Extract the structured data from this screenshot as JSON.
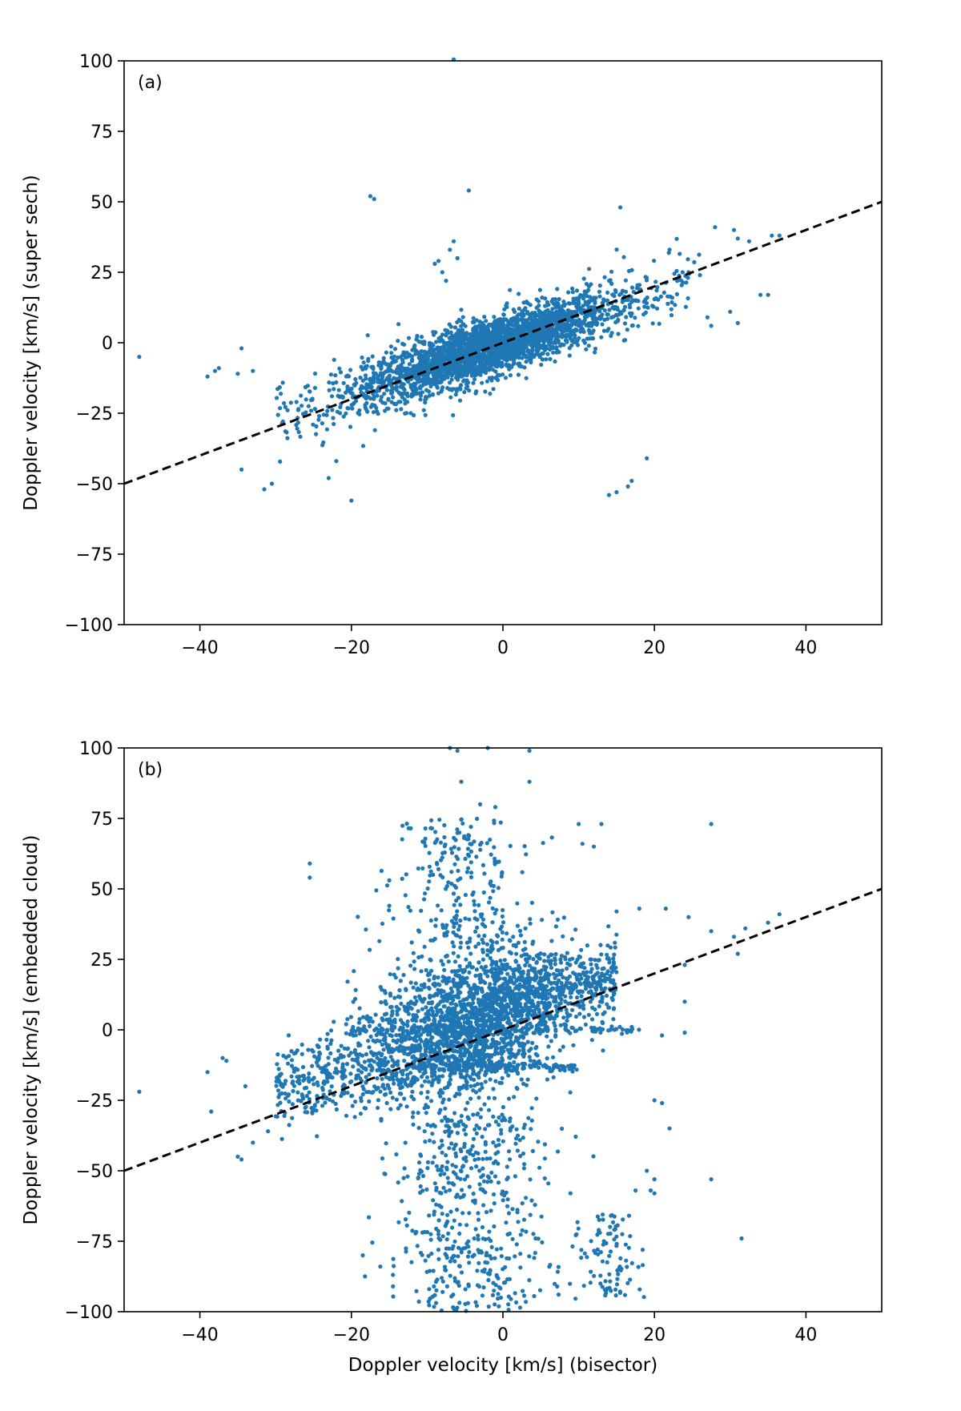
{
  "chart_data": [
    {
      "type": "scatter",
      "panel_label": "(a)",
      "xlabel": "",
      "ylabel": "Doppler velocity [km/s] (super sech)",
      "xlim": [
        -50,
        50
      ],
      "ylim": [
        -100,
        100
      ],
      "xticks": [
        -40,
        -20,
        0,
        20,
        40
      ],
      "yticks": [
        -100,
        -75,
        -50,
        -25,
        0,
        25,
        50,
        75,
        100
      ],
      "xtick_labels": [
        "−40",
        "−20",
        "0",
        "20",
        "40"
      ],
      "ytick_labels": [
        "−100",
        "−75",
        "−50",
        "−25",
        "0",
        "25",
        "50",
        "75",
        "100"
      ],
      "grid": false,
      "point_color": "#1f77b4",
      "reference_line": {
        "slope": 1,
        "intercept": 0,
        "style": "dashed",
        "color": "#000000"
      },
      "outliers": [
        [
          -48,
          -5
        ],
        [
          -39,
          -12
        ],
        [
          -38,
          -10
        ],
        [
          -37.5,
          -9
        ],
        [
          -35,
          -11
        ],
        [
          -34.5,
          -2
        ],
        [
          -33,
          -10
        ],
        [
          -34.5,
          -45
        ],
        [
          -31.5,
          -52
        ],
        [
          -30.5,
          -50
        ],
        [
          -23,
          -48
        ],
        [
          -22,
          -42
        ],
        [
          -20,
          -56
        ],
        [
          -17.5,
          52
        ],
        [
          -17,
          51
        ],
        [
          -4.5,
          54
        ],
        [
          15.5,
          48
        ],
        [
          -9,
          28
        ],
        [
          -8.5,
          29
        ],
        [
          -7,
          33
        ],
        [
          -6.5,
          36
        ],
        [
          -6,
          30
        ],
        [
          -7.5,
          22
        ],
        [
          -8,
          25
        ],
        [
          -6.5,
          100.5
        ],
        [
          14,
          -54
        ],
        [
          15,
          -53
        ],
        [
          16.5,
          -51
        ],
        [
          17,
          -49
        ],
        [
          19,
          -41
        ],
        [
          22,
          33
        ],
        [
          28,
          41
        ],
        [
          30.5,
          40
        ],
        [
          31,
          37
        ],
        [
          32.5,
          36
        ],
        [
          35.5,
          38
        ],
        [
          36.5,
          38
        ],
        [
          34,
          17
        ],
        [
          35,
          17
        ],
        [
          30,
          11
        ],
        [
          31,
          7
        ],
        [
          27,
          9
        ],
        [
          27.5,
          6
        ],
        [
          23,
          22
        ],
        [
          24.5,
          25
        ],
        [
          26,
          24
        ]
      ]
    },
    {
      "type": "scatter",
      "panel_label": "(b)",
      "xlabel": "Doppler velocity [km/s] (bisector)",
      "ylabel": "Doppler velocity [km/s] (embedded cloud)",
      "xlim": [
        -50,
        50
      ],
      "ylim": [
        -100,
        100
      ],
      "xticks": [
        -40,
        -20,
        0,
        20,
        40
      ],
      "yticks": [
        -100,
        -75,
        -50,
        -25,
        0,
        25,
        50,
        75,
        100
      ],
      "xtick_labels": [
        "−40",
        "−20",
        "0",
        "20",
        "40"
      ],
      "ytick_labels": [
        "−100",
        "−75",
        "−50",
        "−25",
        "0",
        "25",
        "50",
        "75",
        "100"
      ],
      "grid": false,
      "point_color": "#1f77b4",
      "reference_line": {
        "slope": 1,
        "intercept": 0,
        "style": "dashed",
        "color": "#000000"
      },
      "outliers": [
        [
          -48,
          -22
        ],
        [
          -39,
          -15
        ],
        [
          -38.5,
          -29
        ],
        [
          -37,
          -10
        ],
        [
          -36.5,
          -11
        ],
        [
          -35,
          -45
        ],
        [
          -34.5,
          -46
        ],
        [
          -34,
          -20
        ],
        [
          -33,
          -40
        ],
        [
          -31,
          -36
        ],
        [
          -25.5,
          59
        ],
        [
          -25.5,
          54
        ],
        [
          -18.5,
          -80
        ],
        [
          -15,
          53
        ],
        [
          -15,
          44
        ],
        [
          -7,
          100
        ],
        [
          -6,
          99
        ],
        [
          -2,
          100
        ],
        [
          3.5,
          99
        ],
        [
          3.5,
          88
        ],
        [
          -5.5,
          88
        ],
        [
          -3,
          80
        ],
        [
          -1,
          79
        ],
        [
          10.5,
          66
        ],
        [
          12,
          65
        ],
        [
          13,
          73
        ],
        [
          10,
          73
        ],
        [
          27.5,
          73
        ],
        [
          15,
          42
        ],
        [
          18,
          43
        ],
        [
          21.5,
          43
        ],
        [
          24.5,
          40
        ],
        [
          27.5,
          35
        ],
        [
          30.5,
          33
        ],
        [
          32,
          36
        ],
        [
          35,
          38
        ],
        [
          36.5,
          41
        ],
        [
          31,
          27
        ],
        [
          24,
          23
        ],
        [
          24,
          10
        ],
        [
          24,
          -1
        ],
        [
          21,
          -2
        ],
        [
          20,
          -25
        ],
        [
          21,
          -26
        ],
        [
          22,
          -35
        ],
        [
          19.5,
          -57
        ],
        [
          20,
          -58
        ],
        [
          27.5,
          -53
        ],
        [
          31.5,
          -74
        ],
        [
          19,
          -50
        ],
        [
          20,
          -53
        ],
        [
          17.5,
          -57
        ]
      ]
    }
  ]
}
